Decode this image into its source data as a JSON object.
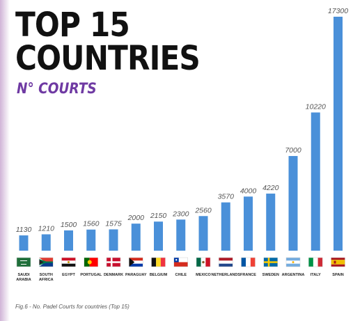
{
  "title_line1": "TOP 15",
  "title_line2": "COUNTRIES",
  "subtitle": "N° COURTS",
  "caption": "Fig.6 - No. Padel Courts for countries (Top 15)",
  "colors": {
    "bar": "#4a90d9",
    "title": "#111111",
    "subtitle": "#6f3aa3",
    "value_label": "#555555"
  },
  "chart_data": {
    "type": "bar",
    "title": "TOP 15 COUNTRIES",
    "subtitle": "N° COURTS",
    "categories": [
      "SAUDI ARABIA",
      "SOUTH AFRICA",
      "EGYPT",
      "PORTUGAL",
      "DENMARK",
      "PARAGUAY",
      "BELGIUM",
      "CHILE",
      "MEXICO",
      "NETHERLANDS",
      "FRANCE",
      "SWEDEN",
      "ARGENTINA",
      "ITALY",
      "SPAIN"
    ],
    "values": [
      1130,
      1210,
      1500,
      1560,
      1575,
      2000,
      2150,
      2300,
      2560,
      3570,
      4000,
      4220,
      7000,
      10220,
      17300
    ],
    "flag_icons": [
      "flag-saudi-arabia",
      "flag-south-africa",
      "flag-egypt",
      "flag-portugal",
      "flag-denmark",
      "flag-paraguay",
      "flag-belgium",
      "flag-chile",
      "flag-mexico",
      "flag-netherlands",
      "flag-france",
      "flag-sweden",
      "flag-argentina",
      "flag-italy",
      "flag-spain"
    ],
    "xlabel": "",
    "ylabel": "",
    "ylim": [
      0,
      17300
    ],
    "grid": false,
    "legend": false
  }
}
